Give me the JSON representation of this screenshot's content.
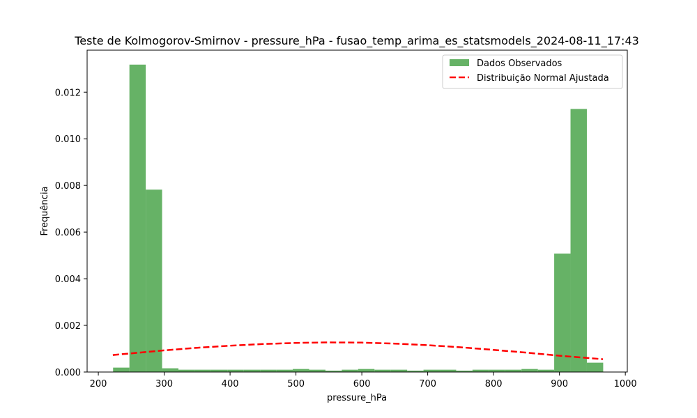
{
  "chart_data": {
    "type": "bar",
    "title": "Teste de Kolmogorov-Smirnov - pressure_hPa - fusao_temp_arima_es_statsmodels_2024-08-11_17:43",
    "xlabel": "pressure_hPa",
    "ylabel": "Frequência",
    "xlim": [
      183,
      1003
    ],
    "ylim": [
      0,
      0.0138
    ],
    "xticks": [
      200,
      300,
      400,
      500,
      600,
      700,
      800,
      900,
      1000
    ],
    "yticks": [
      0.0,
      0.002,
      0.004,
      0.006,
      0.008,
      0.01,
      0.012
    ],
    "ytick_labels": [
      "0.000",
      "0.002",
      "0.004",
      "0.006",
      "0.008",
      "0.010",
      "0.012"
    ],
    "grid": false,
    "legend_position": "top-right",
    "histogram": {
      "name": "Dados Observados",
      "color": "#66b266",
      "bin_edges": [
        222.4,
        247.2,
        272.0,
        296.8,
        321.6,
        346.4,
        371.2,
        396.0,
        420.8,
        445.6,
        470.4,
        495.2,
        520.0,
        544.8,
        569.6,
        594.4,
        619.2,
        644.0,
        668.8,
        693.6,
        718.4,
        743.2,
        768.0,
        792.8,
        817.6,
        842.4,
        867.2,
        892.0,
        916.8,
        941.6,
        966.4
      ],
      "values": [
        0.00019,
        0.01318,
        0.00782,
        0.00016,
        0.0001,
        0.0001,
        0.0001,
        0.0001,
        0.0001,
        0.0001,
        0.0001,
        0.00013,
        0.0001,
        6e-05,
        0.0001,
        0.00013,
        0.0001,
        0.0001,
        6e-05,
        0.0001,
        0.0001,
        6e-05,
        0.0001,
        0.0001,
        0.0001,
        0.00013,
        0.0001,
        0.00508,
        0.01128,
        0.0004
      ]
    },
    "fit": {
      "name": "Distribuição Normal Ajustada",
      "color": "#ff0000",
      "x": [
        222,
        250,
        300,
        350,
        400,
        450,
        500,
        550,
        600,
        650,
        700,
        750,
        800,
        850,
        900,
        940,
        966
      ],
      "y": [
        0.00073,
        0.0008,
        0.00093,
        0.00104,
        0.00113,
        0.0012,
        0.00125,
        0.00127,
        0.00126,
        0.00122,
        0.00115,
        0.00106,
        0.00095,
        0.00083,
        0.0007,
        0.00061,
        0.00055
      ]
    }
  }
}
